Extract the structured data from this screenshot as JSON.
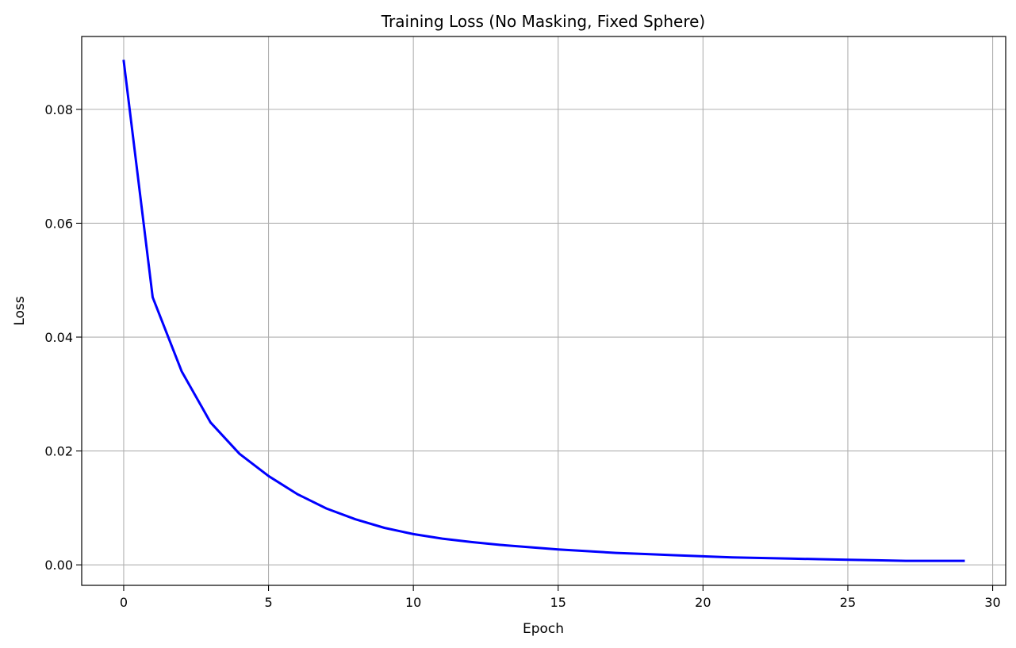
{
  "chart_data": {
    "type": "line",
    "title": "Training Loss (No Masking, Fixed Sphere)",
    "xlabel": "Epoch",
    "ylabel": "Loss",
    "xlim": [
      -1.45,
      30.45
    ],
    "ylim": [
      -0.0036,
      0.0928
    ],
    "x_ticks": [
      0,
      5,
      10,
      15,
      20,
      25,
      30
    ],
    "x_tick_labels": [
      "0",
      "5",
      "10",
      "15",
      "20",
      "25",
      "30"
    ],
    "y_ticks": [
      0.0,
      0.02,
      0.04,
      0.06,
      0.08
    ],
    "y_tick_labels": [
      "0.00",
      "0.02",
      "0.04",
      "0.06",
      "0.08"
    ],
    "grid": true,
    "series": [
      {
        "color": "#0000ff",
        "x": [
          0,
          1,
          2,
          3,
          4,
          5,
          6,
          7,
          8,
          9,
          10,
          11,
          12,
          13,
          14,
          15,
          16,
          17,
          18,
          19,
          20,
          21,
          22,
          23,
          24,
          25,
          26,
          27,
          28,
          29
        ],
        "values": [
          0.0885,
          0.047,
          0.034,
          0.025,
          0.0195,
          0.0156,
          0.0124,
          0.0099,
          0.008,
          0.0065,
          0.0054,
          0.0046,
          0.004,
          0.0035,
          0.0031,
          0.0027,
          0.0024,
          0.0021,
          0.0019,
          0.0017,
          0.0015,
          0.0013,
          0.0012,
          0.0011,
          0.001,
          0.0009,
          0.0008,
          0.0007,
          0.0007,
          0.0007
        ]
      }
    ]
  }
}
